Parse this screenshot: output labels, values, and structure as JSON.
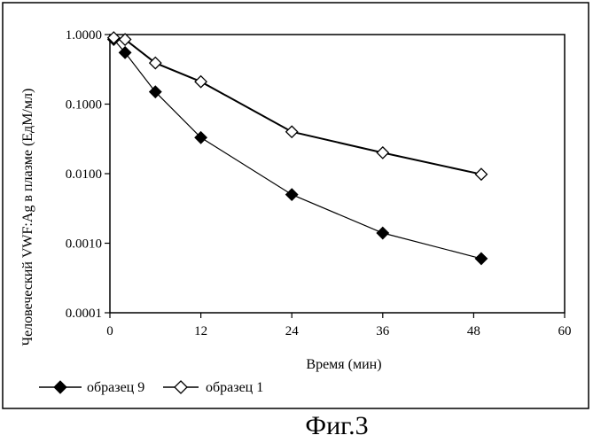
{
  "chart_data": {
    "type": "line",
    "xlabel": "Время (мин)",
    "ylabel": "Человеческий  VWF:Ag в плазме (ЕдМ/мл)",
    "x_ticks": [
      "0",
      "12",
      "24",
      "36",
      "48",
      "60"
    ],
    "y_ticks": [
      "0.0001",
      "0.0010",
      "0.0100",
      "0.1000",
      "1.0000"
    ],
    "xlim": [
      0,
      60
    ],
    "ylim": [
      0.0001,
      1.0
    ],
    "y_scale": "log",
    "grid": false,
    "legend_position": "bottom-left",
    "series": [
      {
        "name": "образец 9",
        "marker": "filled-diamond",
        "color": "#000000",
        "x": [
          0.5,
          2,
          6,
          12,
          24,
          36,
          49
        ],
        "y": [
          0.85,
          0.55,
          0.15,
          0.033,
          0.005,
          0.0014,
          0.0006
        ]
      },
      {
        "name": "образец 1",
        "marker": "open-diamond",
        "color": "#000000",
        "x": [
          0.5,
          2,
          6,
          12,
          24,
          36,
          49
        ],
        "y": [
          0.9,
          0.85,
          0.39,
          0.21,
          0.04,
          0.02,
          0.0098
        ]
      }
    ]
  },
  "caption": "Фиг.3"
}
